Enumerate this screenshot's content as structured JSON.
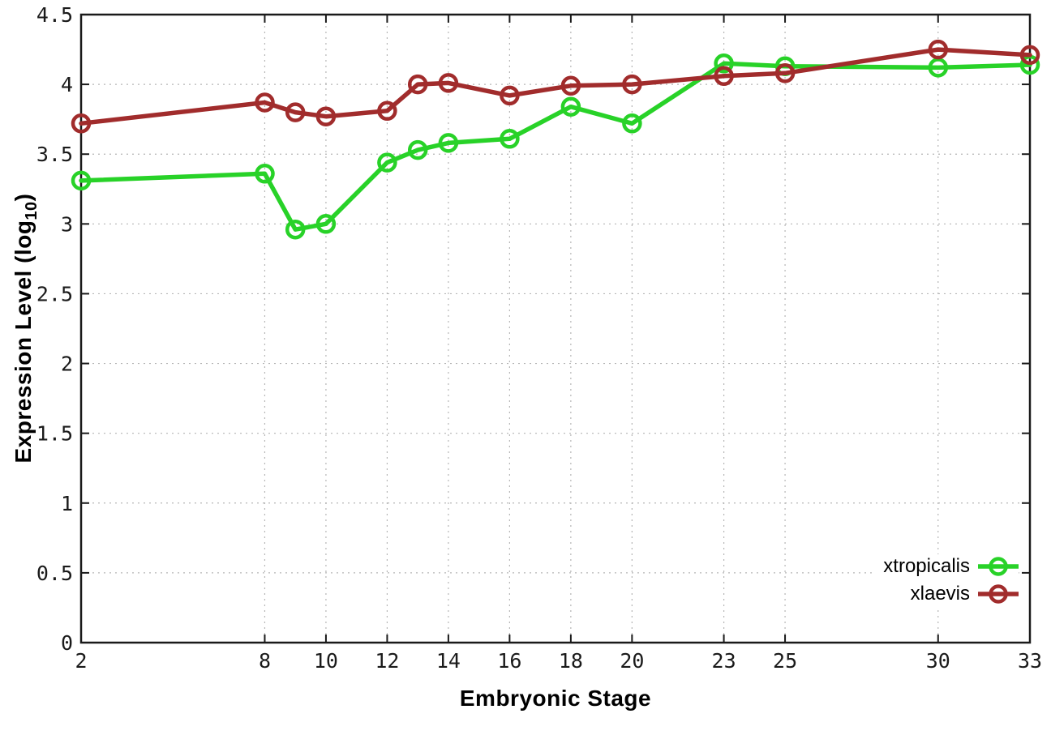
{
  "colors": {
    "background": "#ffffff",
    "axis": "#1a1a1a",
    "grid": "#b5b5b5",
    "tick_label": "#1a1a1a"
  },
  "chart_data": {
    "type": "line",
    "title": "",
    "xlabel": "Embryonic Stage",
    "ylabel": "Expression Level (log10)",
    "ylabel_parts": {
      "pre": "Expression Level (log",
      "sub": "10",
      "post": ")"
    },
    "xlim": [
      2,
      33
    ],
    "ylim": [
      0,
      4.5
    ],
    "grid": true,
    "legend_position": "bottom-right",
    "x": [
      2,
      8,
      9,
      10,
      12,
      13,
      14,
      16,
      18,
      20,
      23,
      25,
      30,
      33
    ],
    "xticks": [
      "2",
      "8",
      "10",
      "12",
      "14",
      "16",
      "18",
      "20",
      "23",
      "25",
      "30",
      "33"
    ],
    "xtick_values": [
      2,
      8,
      10,
      12,
      14,
      16,
      18,
      20,
      23,
      25,
      30,
      33
    ],
    "yticks": [
      "0",
      "0.5",
      "1",
      "1.5",
      "2",
      "2.5",
      "3",
      "3.5",
      "4",
      "4.5"
    ],
    "ytick_values": [
      0,
      0.5,
      1,
      1.5,
      2,
      2.5,
      3,
      3.5,
      4,
      4.5
    ],
    "series": [
      {
        "name": "xtropicalis",
        "color": "#28d228",
        "values": [
          3.31,
          3.36,
          2.96,
          3.0,
          3.44,
          3.53,
          3.58,
          3.61,
          3.84,
          3.72,
          4.15,
          4.13,
          4.12,
          4.14
        ]
      },
      {
        "name": "xlaevis",
        "color": "#a12c2c",
        "values": [
          3.72,
          3.87,
          3.8,
          3.77,
          3.81,
          4.0,
          4.01,
          3.92,
          3.99,
          4.0,
          4.06,
          4.08,
          4.25,
          4.21
        ]
      }
    ]
  }
}
